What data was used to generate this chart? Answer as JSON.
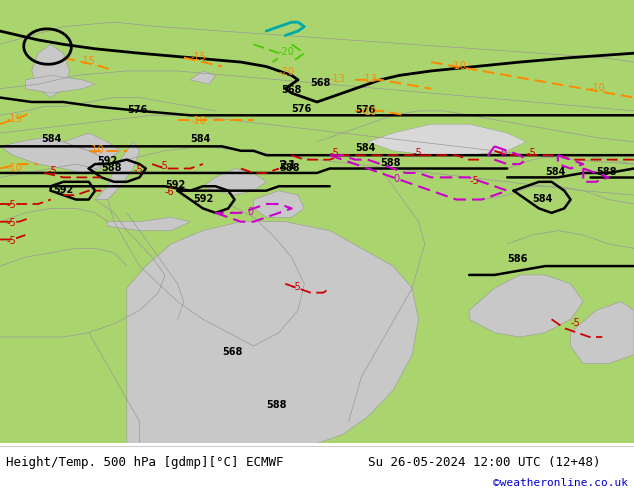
{
  "title_left": "Height/Temp. 500 hPa [gdmp][°C] ECMWF",
  "title_right": "Su 26-05-2024 12:00 UTC (12+48)",
  "watermark": "©weatheronline.co.uk",
  "watermark_color": "#0000cc",
  "bg_color_land": "#aad46e",
  "bg_color_sea": "#c8c8c8",
  "footer_bg": "#ffffff",
  "fig_width": 6.34,
  "fig_height": 4.9,
  "dpi": 100,
  "contour_color": "#000000",
  "orange_color": "#ff8800",
  "red_color": "#cc0000",
  "magenta_color": "#cc00cc",
  "green_color": "#44cc00",
  "cyan_color": "#00aaaa",
  "border_color": "#999999",
  "footer_text_color": "#000000",
  "font_size_footer": 9,
  "font_size_labels": 7
}
